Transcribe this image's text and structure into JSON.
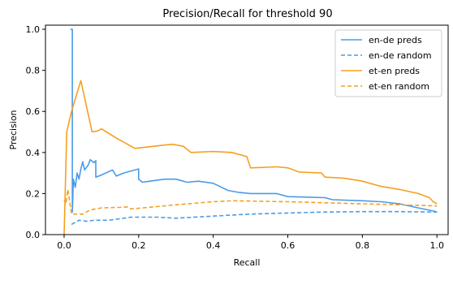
{
  "chart_data": {
    "type": "line",
    "title": "Precision/Recall for threshold 90",
    "xlabel": "Recall",
    "ylabel": "Precision",
    "xlim": [
      -0.05,
      1.03
    ],
    "ylim": [
      0.0,
      1.02
    ],
    "xticks": [
      0.0,
      0.2,
      0.4,
      0.6,
      0.8,
      1.0
    ],
    "xtick_labels": [
      "0.0",
      "0.2",
      "0.4",
      "0.6",
      "0.8",
      "1.0"
    ],
    "yticks": [
      0.0,
      0.2,
      0.4,
      0.6,
      0.8,
      1.0
    ],
    "ytick_labels": [
      "0.0",
      "0.2",
      "0.4",
      "0.6",
      "0.8",
      "1.0"
    ],
    "grid": false,
    "legend_position": "top-right",
    "series": [
      {
        "name": "en-de preds",
        "color": "#4a9be8",
        "dash": "solid",
        "points": [
          [
            0.017,
            1.0
          ],
          [
            0.022,
            1.0
          ],
          [
            0.022,
            0.11
          ],
          [
            0.025,
            0.27
          ],
          [
            0.03,
            0.23
          ],
          [
            0.035,
            0.3
          ],
          [
            0.04,
            0.27
          ],
          [
            0.045,
            0.32
          ],
          [
            0.05,
            0.355
          ],
          [
            0.055,
            0.315
          ],
          [
            0.065,
            0.34
          ],
          [
            0.07,
            0.365
          ],
          [
            0.08,
            0.35
          ],
          [
            0.085,
            0.36
          ],
          [
            0.085,
            0.28
          ],
          [
            0.1,
            0.29
          ],
          [
            0.13,
            0.315
          ],
          [
            0.14,
            0.285
          ],
          [
            0.16,
            0.3
          ],
          [
            0.2,
            0.32
          ],
          [
            0.2,
            0.27
          ],
          [
            0.21,
            0.255
          ],
          [
            0.23,
            0.26
          ],
          [
            0.27,
            0.27
          ],
          [
            0.3,
            0.27
          ],
          [
            0.33,
            0.255
          ],
          [
            0.36,
            0.26
          ],
          [
            0.4,
            0.25
          ],
          [
            0.44,
            0.215
          ],
          [
            0.47,
            0.205
          ],
          [
            0.5,
            0.2
          ],
          [
            0.55,
            0.2
          ],
          [
            0.57,
            0.2
          ],
          [
            0.6,
            0.185
          ],
          [
            0.7,
            0.18
          ],
          [
            0.72,
            0.17
          ],
          [
            0.8,
            0.165
          ],
          [
            0.85,
            0.16
          ],
          [
            0.9,
            0.15
          ],
          [
            0.95,
            0.13
          ],
          [
            0.99,
            0.115
          ],
          [
            1.0,
            0.11
          ]
        ]
      },
      {
        "name": "en-de random",
        "color": "#4a9be8",
        "dash": "dashed",
        "points": [
          [
            0.02,
            0.05
          ],
          [
            0.04,
            0.07
          ],
          [
            0.06,
            0.065
          ],
          [
            0.08,
            0.07
          ],
          [
            0.12,
            0.07
          ],
          [
            0.18,
            0.085
          ],
          [
            0.25,
            0.085
          ],
          [
            0.3,
            0.08
          ],
          [
            0.4,
            0.09
          ],
          [
            0.5,
            0.1
          ],
          [
            0.6,
            0.105
          ],
          [
            0.7,
            0.11
          ],
          [
            0.8,
            0.112
          ],
          [
            0.9,
            0.112
          ],
          [
            1.0,
            0.11
          ]
        ]
      },
      {
        "name": "et-en preds",
        "color": "#f5a020",
        "dash": "solid",
        "points": [
          [
            0.0,
            0.0
          ],
          [
            0.007,
            0.5
          ],
          [
            0.02,
            0.6
          ],
          [
            0.045,
            0.75
          ],
          [
            0.075,
            0.5
          ],
          [
            0.09,
            0.505
          ],
          [
            0.1,
            0.515
          ],
          [
            0.14,
            0.47
          ],
          [
            0.19,
            0.42
          ],
          [
            0.24,
            0.43
          ],
          [
            0.29,
            0.44
          ],
          [
            0.32,
            0.43
          ],
          [
            0.34,
            0.4
          ],
          [
            0.4,
            0.405
          ],
          [
            0.45,
            0.4
          ],
          [
            0.49,
            0.38
          ],
          [
            0.5,
            0.325
          ],
          [
            0.57,
            0.33
          ],
          [
            0.6,
            0.325
          ],
          [
            0.63,
            0.305
          ],
          [
            0.69,
            0.3
          ],
          [
            0.7,
            0.28
          ],
          [
            0.75,
            0.275
          ],
          [
            0.8,
            0.26
          ],
          [
            0.85,
            0.235
          ],
          [
            0.9,
            0.22
          ],
          [
            0.95,
            0.2
          ],
          [
            0.98,
            0.18
          ],
          [
            0.99,
            0.16
          ],
          [
            1.0,
            0.15
          ]
        ]
      },
      {
        "name": "et-en random",
        "color": "#f5a020",
        "dash": "dashed",
        "points": [
          [
            0.0,
            0.17
          ],
          [
            0.005,
            0.15
          ],
          [
            0.01,
            0.22
          ],
          [
            0.02,
            0.1
          ],
          [
            0.05,
            0.1
          ],
          [
            0.07,
            0.12
          ],
          [
            0.1,
            0.13
          ],
          [
            0.15,
            0.133
          ],
          [
            0.17,
            0.135
          ],
          [
            0.18,
            0.125
          ],
          [
            0.3,
            0.145
          ],
          [
            0.4,
            0.16
          ],
          [
            0.45,
            0.165
          ],
          [
            0.6,
            0.16
          ],
          [
            0.7,
            0.155
          ],
          [
            0.8,
            0.15
          ],
          [
            0.9,
            0.145
          ],
          [
            1.0,
            0.14
          ]
        ]
      }
    ]
  }
}
